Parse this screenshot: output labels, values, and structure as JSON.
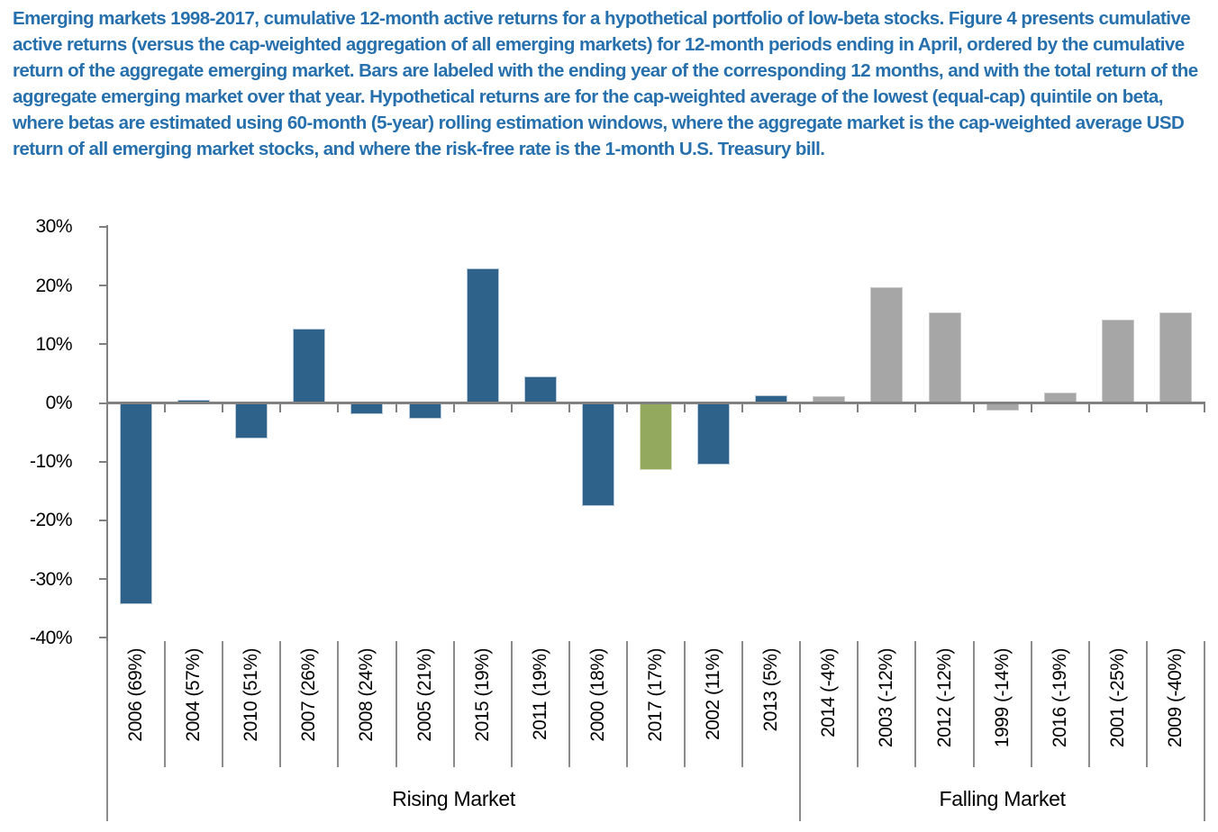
{
  "caption": {
    "text": "Emerging markets 1998-2017, cumulative 12-month active returns for a hypothetical portfolio of low-beta stocks. Figure 4 presents cumulative active returns (versus the cap-weighted aggregation of all emerging markets) for 12-month periods ending in April, ordered by the cumulative return of the aggregate emerging market. Bars are labeled with the ending year of the corresponding 12 months, and with the total return of the aggregate emerging market over that year. Hypothetical returns are for the cap-weighted average of the lowest (equal-cap) quintile on beta, where betas are estimated using 60-month (5-year) rolling estimation windows, where the aggregate market is the cap-weighted average USD return of all emerging market stocks, and where the risk-free rate is the 1-month U.S. Treasury bill.",
    "color": "#2770AE"
  },
  "chart_data": {
    "type": "bar",
    "title": "",
    "xlabel": "",
    "ylabel": "",
    "ylim": [
      -40,
      30
    ],
    "yticks": [
      30,
      20,
      10,
      0,
      -10,
      -20,
      -30,
      -40
    ],
    "ytick_suffix": "%",
    "grid": false,
    "legend": "none",
    "groups": [
      {
        "name": "Rising Market",
        "count": 12
      },
      {
        "name": "Falling Market",
        "count": 7
      }
    ],
    "bars": [
      {
        "label": "2006 (69%)",
        "year": "2006",
        "aggregate_market_return_pct": 69,
        "active_return_pct": -34.2,
        "color": "blue",
        "group": "Rising Market"
      },
      {
        "label": "2004 (57%)",
        "year": "2004",
        "aggregate_market_return_pct": 57,
        "active_return_pct": 0.6,
        "color": "blue",
        "group": "Rising Market"
      },
      {
        "label": "2010 (51%)",
        "year": "2010",
        "aggregate_market_return_pct": 51,
        "active_return_pct": -5.9,
        "color": "blue",
        "group": "Rising Market"
      },
      {
        "label": "2007 (26%)",
        "year": "2007",
        "aggregate_market_return_pct": 26,
        "active_return_pct": 12.6,
        "color": "blue",
        "group": "Rising Market"
      },
      {
        "label": "2008 (24%)",
        "year": "2008",
        "aggregate_market_return_pct": 24,
        "active_return_pct": -1.7,
        "color": "blue",
        "group": "Rising Market"
      },
      {
        "label": "2005 (21%)",
        "year": "2005",
        "aggregate_market_return_pct": 21,
        "active_return_pct": -2.6,
        "color": "blue",
        "group": "Rising Market"
      },
      {
        "label": "2015 (19%)",
        "year": "2015",
        "aggregate_market_return_pct": 19,
        "active_return_pct": 22.9,
        "color": "blue",
        "group": "Rising Market"
      },
      {
        "label": "2011 (19%)",
        "year": "2011",
        "aggregate_market_return_pct": 19,
        "active_return_pct": 4.5,
        "color": "blue",
        "group": "Rising Market"
      },
      {
        "label": "2000 (18%)",
        "year": "2000",
        "aggregate_market_return_pct": 18,
        "active_return_pct": -17.4,
        "color": "blue",
        "group": "Rising Market"
      },
      {
        "label": "2017 (17%)",
        "year": "2017",
        "aggregate_market_return_pct": 17,
        "active_return_pct": -11.3,
        "color": "green",
        "group": "Rising Market"
      },
      {
        "label": "2002 (11%)",
        "year": "2002",
        "aggregate_market_return_pct": 11,
        "active_return_pct": -10.4,
        "color": "blue",
        "group": "Rising Market"
      },
      {
        "label": "2013 (5%)",
        "year": "2013",
        "aggregate_market_return_pct": 5,
        "active_return_pct": 1.3,
        "color": "blue",
        "group": "Rising Market"
      },
      {
        "label": "2014 (-4%)",
        "year": "2014",
        "aggregate_market_return_pct": -4,
        "active_return_pct": 1.2,
        "color": "gray",
        "group": "Falling Market"
      },
      {
        "label": "2003 (-12%)",
        "year": "2003",
        "aggregate_market_return_pct": -12,
        "active_return_pct": 19.7,
        "color": "gray",
        "group": "Falling Market"
      },
      {
        "label": "2012 (-12%)",
        "year": "2012",
        "aggregate_market_return_pct": -12,
        "active_return_pct": 15.4,
        "color": "gray",
        "group": "Falling Market"
      },
      {
        "label": "1999 (-14%)",
        "year": "1999",
        "aggregate_market_return_pct": -14,
        "active_return_pct": -1.2,
        "color": "gray",
        "group": "Falling Market"
      },
      {
        "label": "2016 (-19%)",
        "year": "2016",
        "aggregate_market_return_pct": -19,
        "active_return_pct": 1.7,
        "color": "gray",
        "group": "Falling Market"
      },
      {
        "label": "2001 (-25%)",
        "year": "2001",
        "aggregate_market_return_pct": -25,
        "active_return_pct": 14.2,
        "color": "gray",
        "group": "Falling Market"
      },
      {
        "label": "2009 (-40%)",
        "year": "2009",
        "aggregate_market_return_pct": -40,
        "active_return_pct": 15.4,
        "color": "gray",
        "group": "Falling Market"
      }
    ],
    "colors": {
      "blue": "#2E628A",
      "green": "#92A95E",
      "gray": "#A6A6A6",
      "blue_border": "#B6C8D8",
      "green_border": "#D8DFC2",
      "gray_border": "#C9C9C9",
      "axis": "#808080"
    }
  }
}
